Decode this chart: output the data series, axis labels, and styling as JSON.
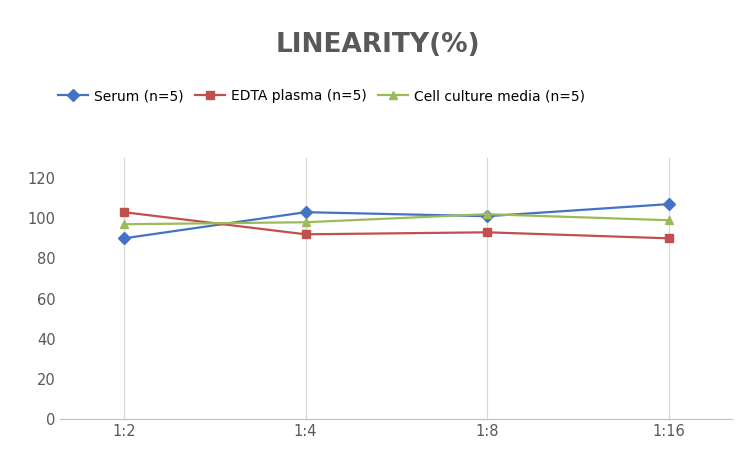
{
  "title": "LINEARITY(%)",
  "title_fontsize": 19,
  "title_fontweight": "bold",
  "title_color": "#595959",
  "x_labels": [
    "1:2",
    "1:4",
    "1:8",
    "1:16"
  ],
  "x_positions": [
    0,
    1,
    2,
    3
  ],
  "series": [
    {
      "label": "Serum (n=5)",
      "values": [
        90,
        103,
        101,
        107
      ],
      "color": "#4472C4",
      "marker": "D",
      "markersize": 6,
      "linewidth": 1.6
    },
    {
      "label": "EDTA plasma (n=5)",
      "values": [
        103,
        92,
        93,
        90
      ],
      "color": "#C0504D",
      "marker": "s",
      "markersize": 6,
      "linewidth": 1.6
    },
    {
      "label": "Cell culture media (n=5)",
      "values": [
        97,
        98,
        102,
        99
      ],
      "color": "#9BBB59",
      "marker": "^",
      "markersize": 6,
      "linewidth": 1.6
    }
  ],
  "ylim": [
    0,
    130
  ],
  "yticks": [
    0,
    20,
    40,
    60,
    80,
    100,
    120
  ],
  "background_color": "#ffffff",
  "legend_fontsize": 10,
  "axis_fontsize": 10.5,
  "tick_color": "#595959",
  "grid_color": "#d9d9d9",
  "spine_color": "#bfbfbf"
}
